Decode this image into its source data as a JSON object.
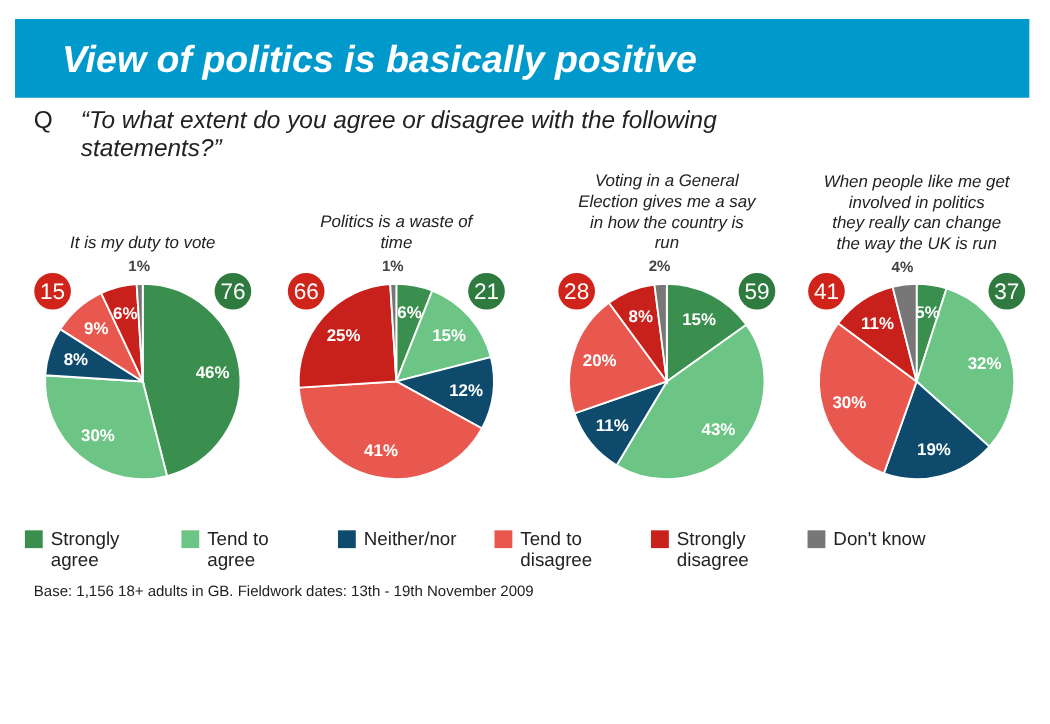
{
  "chart_data": [
    {
      "type": "pie",
      "title": "View of politics is basically positive",
      "subtitle": "It is my duty to vote",
      "categories": [
        "Strongly agree",
        "Tend to agree",
        "Neither/nor",
        "Tend to disagree",
        "Strongly disagree",
        "Don't know"
      ],
      "values": [
        46,
        30,
        8,
        9,
        6,
        1
      ],
      "value_labels": [
        "46%",
        "30%",
        "8%",
        "9%",
        "6%",
        "1%"
      ],
      "colors": [
        "#3a8f4f",
        "#6cc485",
        "#0d4a6b",
        "#e8584f",
        "#c8201a",
        "#777777"
      ],
      "legend": "bottom",
      "annotations": [
        "76",
        "15",
        "Q",
        "“To what extent do you agree or disagree with the following statements?”",
        "Base: 1,156 18+ adults in GB. Fieldwork dates: 13th - 19th November 2009"
      ]
    },
    {
      "type": "pie",
      "subtitle": "Politics is a waste of time",
      "values": [
        6,
        15,
        12,
        41,
        25,
        1
      ],
      "value_labels": [
        "6%",
        "15%",
        "12%",
        "41%",
        "25%",
        "1%"
      ],
      "colors": [
        "#3a8f4f",
        "#6cc485",
        "#0d4a6b",
        "#e8584f",
        "#c8201a",
        "#777777"
      ],
      "annotations": [
        "21",
        "66"
      ]
    },
    {
      "type": "pie",
      "subtitle": "Voting in a General Election gives me a say in how the country is run",
      "values": [
        15,
        43,
        11,
        20,
        8,
        2
      ],
      "value_labels": [
        "15%",
        "43%",
        "11%",
        "20%",
        "8%",
        "2%"
      ],
      "colors": [
        "#3a8f4f",
        "#6cc485",
        "#0d4a6b",
        "#e8584f",
        "#c8201a",
        "#777777"
      ],
      "annotations": [
        "59",
        "28"
      ]
    },
    {
      "type": "pie",
      "subtitle": "When people like me get involved in politics they really can change the way the UK is run",
      "values": [
        5,
        32,
        19,
        30,
        11,
        4
      ],
      "value_labels": [
        "5%",
        "32%",
        "19%",
        "30%",
        "11%",
        "4%"
      ],
      "colors": [
        "#3a8f4f",
        "#6cc485",
        "#0d4a6b",
        "#e8584f",
        "#c8201a",
        "#777777"
      ],
      "annotations": [
        "37",
        "41"
      ]
    }
  ]
}
